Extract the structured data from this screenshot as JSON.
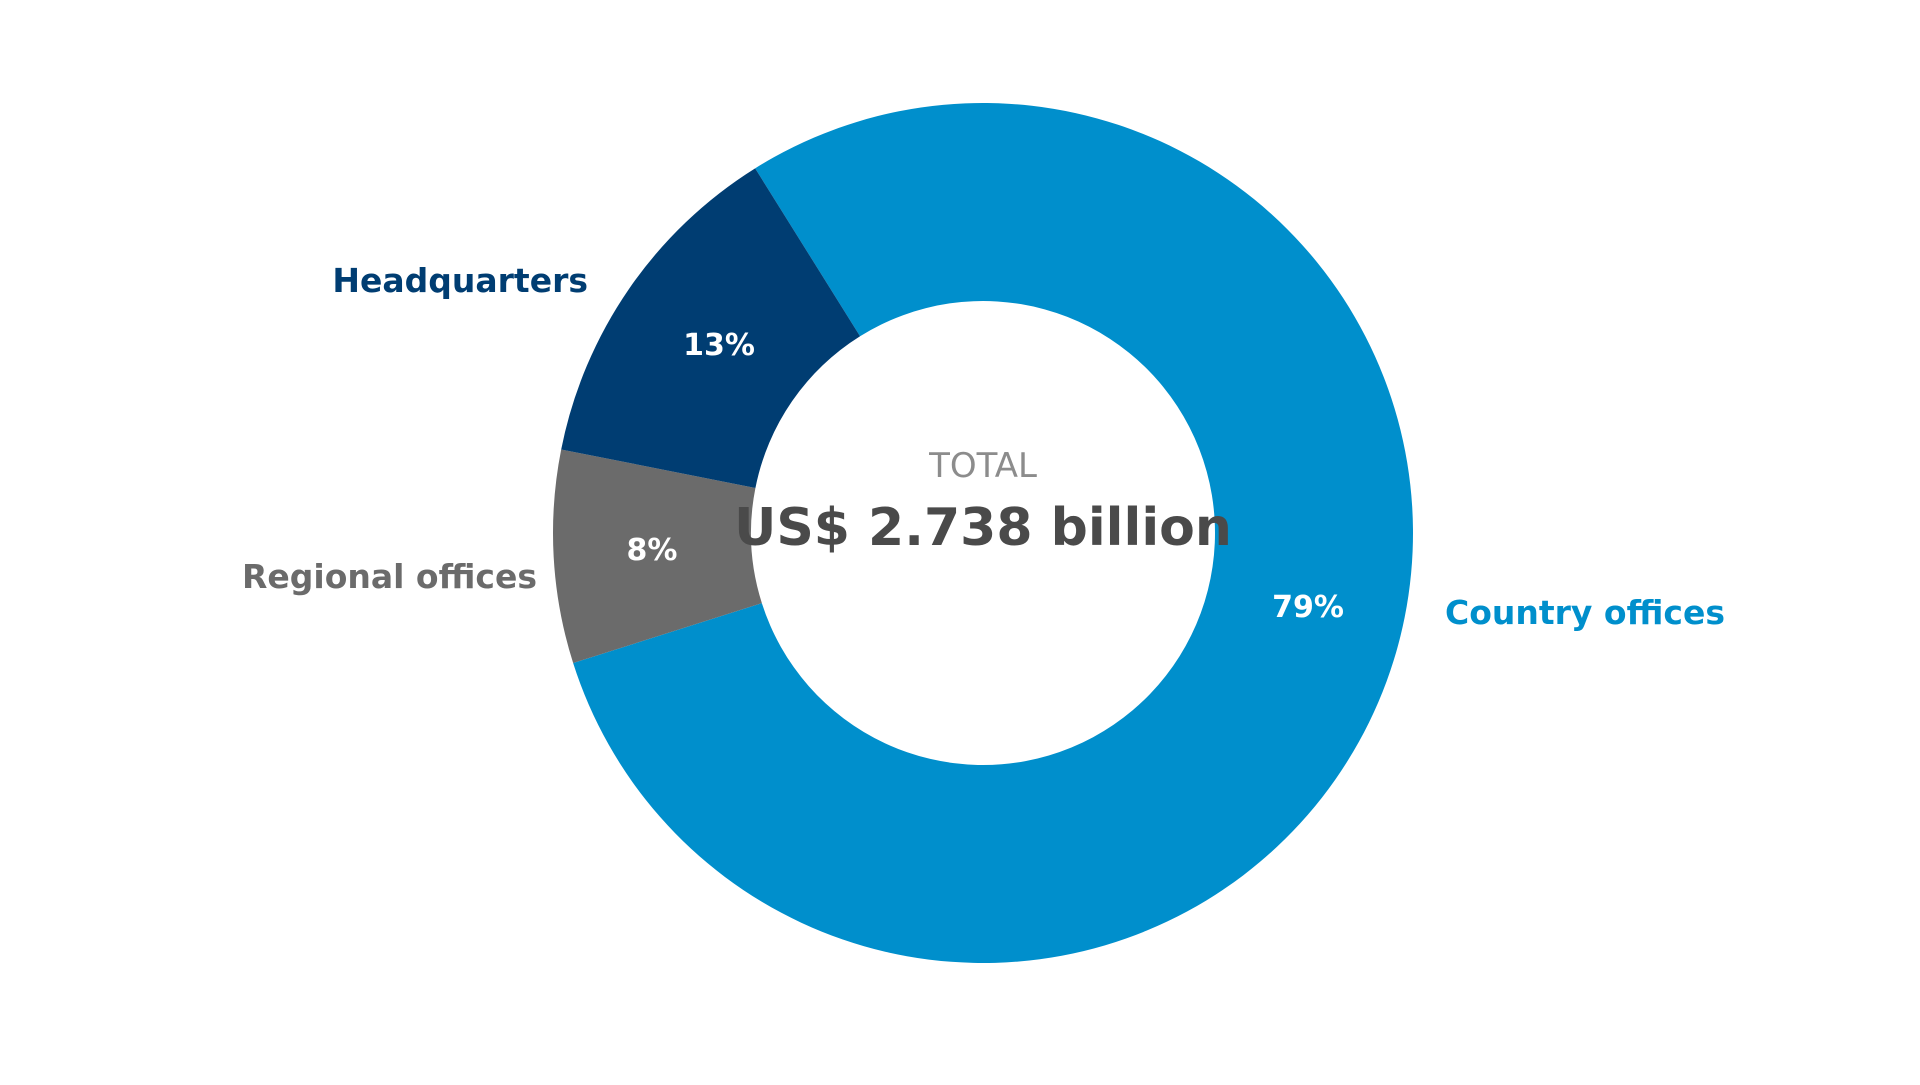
{
  "chart_data": {
    "type": "pie",
    "donut": true,
    "slices": [
      {
        "label": "Country offices",
        "value": 79,
        "value_label": "79%",
        "color": "#008fcc"
      },
      {
        "label": "Regional offices",
        "value": 8,
        "value_label": "8%",
        "color": "#6b6b6b"
      },
      {
        "label": "Headquarters",
        "value": 13,
        "value_label": "13%",
        "color": "#003d72"
      }
    ],
    "center": {
      "caption": "TOTAL",
      "total": "US$ 2.738 billion"
    }
  }
}
